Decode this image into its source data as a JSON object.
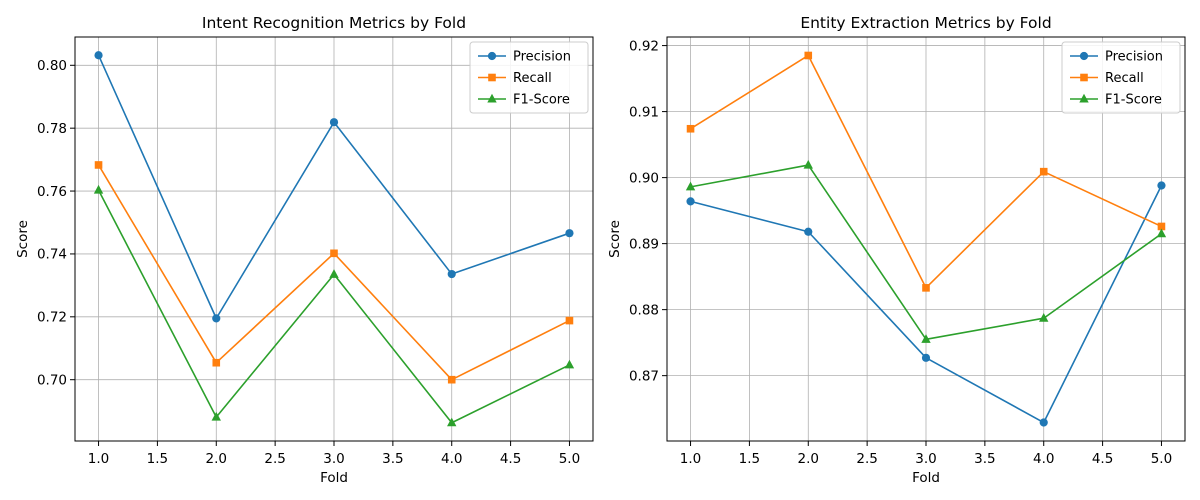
{
  "chart_data": [
    {
      "type": "line",
      "title": "Intent Recognition Metrics by Fold",
      "xlabel": "Fold",
      "ylabel": "Score",
      "x": [
        1,
        2,
        3,
        4,
        5
      ],
      "xlim": [
        0.8,
        5.2
      ],
      "ylim": [
        0.6805,
        0.809
      ],
      "xticks": [
        "1.0",
        "1.5",
        "2.0",
        "2.5",
        "3.0",
        "3.5",
        "4.0",
        "4.5",
        "5.0"
      ],
      "yticks": [
        "0.70",
        "0.72",
        "0.74",
        "0.76",
        "0.78",
        "0.80"
      ],
      "grid": true,
      "legend": "top-right",
      "series": [
        {
          "name": "Precision",
          "marker": "circle",
          "color": "#1f77b4",
          "values": [
            0.8032,
            0.7195,
            0.7819,
            0.7336,
            0.7466
          ]
        },
        {
          "name": "Recall",
          "marker": "square",
          "color": "#ff7f0e",
          "values": [
            0.7683,
            0.7054,
            0.7402,
            0.7,
            0.7188
          ]
        },
        {
          "name": "F1-Score",
          "marker": "triangle",
          "color": "#2ca02c",
          "values": [
            0.7603,
            0.6881,
            0.7335,
            0.6863,
            0.7047
          ]
        }
      ]
    },
    {
      "type": "line",
      "title": "Entity Extraction Metrics by Fold",
      "xlabel": "Fold",
      "ylabel": "Score",
      "x": [
        1,
        2,
        3,
        4,
        5
      ],
      "xlim": [
        0.8,
        5.2
      ],
      "ylim": [
        0.8601,
        0.9213
      ],
      "xticks": [
        "1.0",
        "1.5",
        "2.0",
        "2.5",
        "3.0",
        "3.5",
        "4.0",
        "4.5",
        "5.0"
      ],
      "yticks": [
        "0.87",
        "0.88",
        "0.89",
        "0.90",
        "0.91",
        "0.92"
      ],
      "grid": true,
      "legend": "top-right",
      "series": [
        {
          "name": "Precision",
          "marker": "circle",
          "color": "#1f77b4",
          "values": [
            0.8964,
            0.8918,
            0.8727,
            0.8629,
            0.8988
          ]
        },
        {
          "name": "Recall",
          "marker": "square",
          "color": "#ff7f0e",
          "values": [
            0.9074,
            0.9185,
            0.8833,
            0.9009,
            0.8926
          ]
        },
        {
          "name": "F1-Score",
          "marker": "triangle",
          "color": "#2ca02c",
          "values": [
            0.8986,
            0.9019,
            0.8755,
            0.8787,
            0.8915
          ]
        }
      ]
    }
  ]
}
